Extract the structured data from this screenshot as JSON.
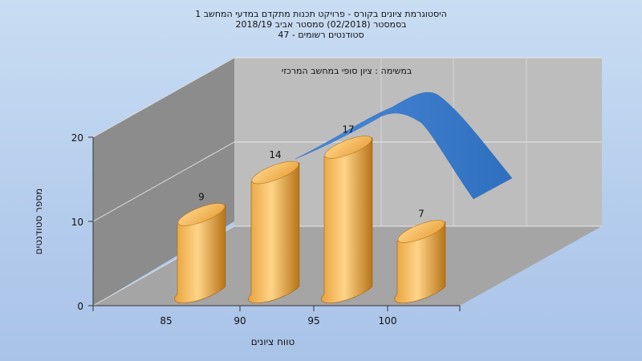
{
  "chart_data": {
    "type": "bar",
    "title_lines": [
      "היסטוגרמת ציונים בקורס - פרויקט תכנות מתקדם במדעי המחשב 1",
      "בסמסטר  (02/2018)  סמסטר אביב 2018/19",
      "סטודנטים רשומים - 47"
    ],
    "annotation": "במשימה : ציון סופי במחשב המרכזי",
    "categories": [
      "85",
      "90",
      "95",
      "100"
    ],
    "values": [
      9,
      14,
      17,
      7
    ],
    "data_labels": [
      "9",
      "14",
      "17",
      "7"
    ],
    "xlabel": "טווח ציונים",
    "ylabel": "מספר סטודנטים",
    "y_ticks": [
      "0",
      "10",
      "20"
    ],
    "ylim": [
      0,
      20
    ],
    "grid": true,
    "colors": {
      "bar_light": "#ffd489",
      "bar_mid": "#e8a23c",
      "bar_dark": "#b77418",
      "curve": "#2f6fbf",
      "wall_back": "#bdbdbd",
      "wall_left": "#8c8c8c",
      "floor": "#a5a5a5"
    }
  }
}
